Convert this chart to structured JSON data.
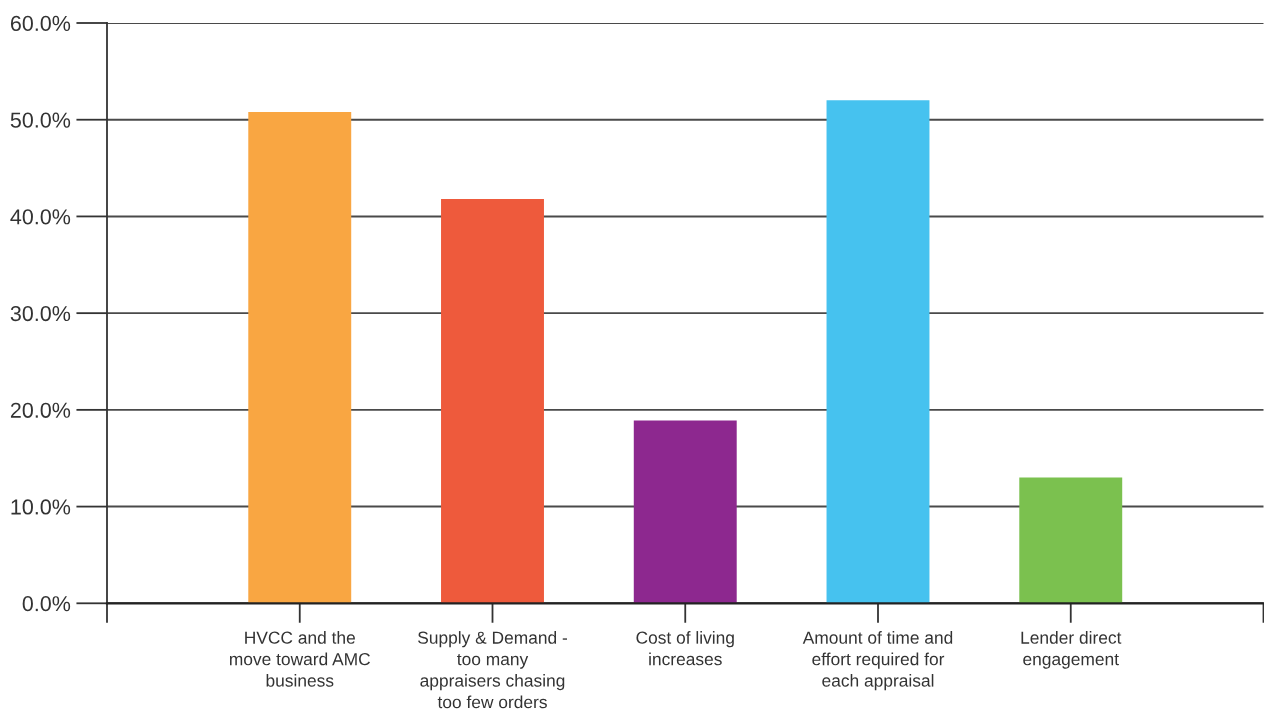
{
  "chart_data": {
    "type": "bar",
    "categories": [
      "HVCC and the\nmove toward AMC\nbusiness",
      "Supply & Demand -\ntoo many\nappraisers chasing\ntoo few orders",
      "Cost of living\nincreases",
      "Amount of time and\neffort required for\neach appraisal",
      "Lender direct\nengagement"
    ],
    "values": [
      50.8,
      41.8,
      18.9,
      52.0,
      13.0
    ],
    "colors": [
      "#f9a642",
      "#ee5a3c",
      "#8d288f",
      "#46c2ef",
      "#7bc14f"
    ],
    "ylim": [
      0,
      60
    ],
    "yticks": [
      {
        "value": 0,
        "label": "0.0%"
      },
      {
        "value": 10,
        "label": "10.0%"
      },
      {
        "value": 20,
        "label": "20.0%"
      },
      {
        "value": 30,
        "label": "30.0%"
      },
      {
        "value": 40,
        "label": "40.0%"
      },
      {
        "value": 50,
        "label": "50.0%"
      },
      {
        "value": 60,
        "label": "60.0%"
      }
    ],
    "grid": "y"
  }
}
